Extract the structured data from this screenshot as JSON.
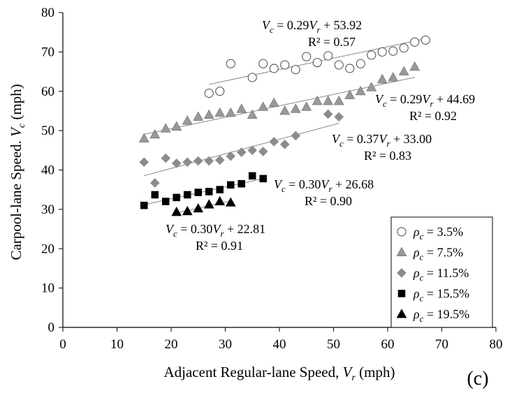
{
  "chart_data": {
    "type": "scatter",
    "panel_label": "(c)",
    "xlabel": "Adjacent Regular-lane Speed, V_r (mph)",
    "xlabel_parts": [
      "Adjacent Regular-lane Speed, ",
      "V",
      "r",
      " (mph)"
    ],
    "ylabel": "Carpool-lane Speed. V_c (mph)",
    "ylabel_parts": [
      "Carpool-lane Speed. ",
      "V",
      "c",
      " (mph)"
    ],
    "xlim": [
      0,
      80
    ],
    "ylim": [
      0,
      80
    ],
    "xticks": [
      0,
      10,
      20,
      30,
      40,
      50,
      60,
      70,
      80
    ],
    "yticks": [
      0,
      10,
      20,
      30,
      40,
      50,
      60,
      70,
      80
    ],
    "grid": false,
    "legend_position": "bottom-right",
    "series": [
      {
        "name": "ρc = 3.5%",
        "legend": {
          "pre": "ρ",
          "sub": "c",
          "post": " = 3.5%"
        },
        "marker": "circle-open",
        "color": "#777777",
        "x": [
          27,
          29,
          31,
          35,
          37,
          39,
          41,
          43,
          45,
          47,
          49,
          51,
          53,
          55,
          57,
          59,
          61,
          63,
          65,
          67
        ],
        "y": [
          59.5,
          60,
          67,
          63.5,
          67,
          65.8,
          66.7,
          65.5,
          68.8,
          67.3,
          69,
          66.7,
          65.8,
          67,
          69.2,
          70,
          70.2,
          71,
          72.5,
          73
        ],
        "trendline": {
          "x": [
            27,
            67
          ],
          "slope": 0.29,
          "intercept": 53.92
        },
        "equation": {
          "v": "V",
          "vsub": "c",
          "mid": " = 0.29",
          "v2": "V",
          "v2sub": "r",
          "tail": " + 53.92"
        },
        "r2": "R² = 0.57"
      },
      {
        "name": "ρc = 7.5%",
        "legend": {
          "pre": "ρ",
          "sub": "c",
          "post": " = 7.5%"
        },
        "marker": "triangle",
        "color": "#999999",
        "x": [
          15,
          17,
          19,
          21,
          23,
          25,
          27,
          29,
          31,
          33,
          35,
          37,
          39,
          41,
          43,
          45,
          47,
          49,
          51,
          53,
          55,
          57,
          59,
          61,
          63,
          65
        ],
        "y": [
          48,
          49,
          50.5,
          51,
          52.5,
          53.5,
          54,
          54.5,
          54.5,
          55.5,
          54,
          56,
          57,
          55,
          55.5,
          56,
          57.5,
          57.5,
          57.5,
          59,
          60,
          61,
          63,
          63.5,
          65,
          66.2
        ],
        "trendline": {
          "x": [
            15,
            65
          ],
          "slope": 0.29,
          "intercept": 44.69
        },
        "equation": {
          "v": "V",
          "vsub": "c",
          "mid": " = 0.29",
          "v2": "V",
          "v2sub": "r",
          "tail": " + 44.69"
        },
        "r2": "R² = 0.92"
      },
      {
        "name": "ρc = 11.5%",
        "legend": {
          "pre": "ρ",
          "sub": "c",
          "post": " = 11.5%"
        },
        "marker": "diamond",
        "color": "#8c8c8c",
        "x": [
          15,
          17,
          19,
          21,
          23,
          25,
          27,
          29,
          31,
          33,
          35,
          37,
          39,
          41,
          43,
          49,
          51
        ],
        "y": [
          42,
          36.7,
          43,
          41.7,
          42,
          42.3,
          42.3,
          42.5,
          43.5,
          44.5,
          45,
          44.7,
          47.2,
          46.5,
          48.7,
          54.2,
          53.5
        ],
        "trendline": {
          "x": [
            15,
            51
          ],
          "slope": 0.37,
          "intercept": 33.0
        },
        "equation": {
          "v": "V",
          "vsub": "c",
          "mid": " = 0.37",
          "v2": "V",
          "v2sub": "r",
          "tail": " + 33.00"
        },
        "r2": "R² = 0.83"
      },
      {
        "name": "ρc = 15.5%",
        "legend": {
          "pre": "ρ",
          "sub": "c",
          "post": " = 15.5%"
        },
        "marker": "square",
        "color": "#000000",
        "x": [
          15,
          17,
          19,
          21,
          23,
          25,
          27,
          29,
          31,
          33,
          35,
          37
        ],
        "y": [
          31,
          33.7,
          32,
          33,
          33.7,
          34.3,
          34.5,
          35,
          36.2,
          36.5,
          38.5,
          37.8
        ],
        "trendline": {
          "x": [
            15,
            37
          ],
          "slope": 0.3,
          "intercept": 26.68
        },
        "equation": {
          "v": "V",
          "vsub": "c",
          "mid": " = 0.30",
          "v2": "V",
          "v2sub": "r",
          "tail": " + 26.68"
        },
        "r2": "R² = 0.90"
      },
      {
        "name": "ρc = 19.5%",
        "legend": {
          "pre": "ρ",
          "sub": "c",
          "post": " = 19.5%"
        },
        "marker": "triangle",
        "color": "#000000",
        "x": [
          21,
          23,
          25,
          27,
          29,
          31
        ],
        "y": [
          29.3,
          29.5,
          30.2,
          31.2,
          32,
          31.7
        ],
        "trendline": {
          "x": [
            21,
            31
          ],
          "slope": 0.3,
          "intercept": 22.81
        },
        "equation": {
          "v": "V",
          "vsub": "c",
          "mid": " = 0.30",
          "v2": "V",
          "v2sub": "r",
          "tail": " + 22.81"
        },
        "r2": "R² = 0.91"
      }
    ]
  }
}
